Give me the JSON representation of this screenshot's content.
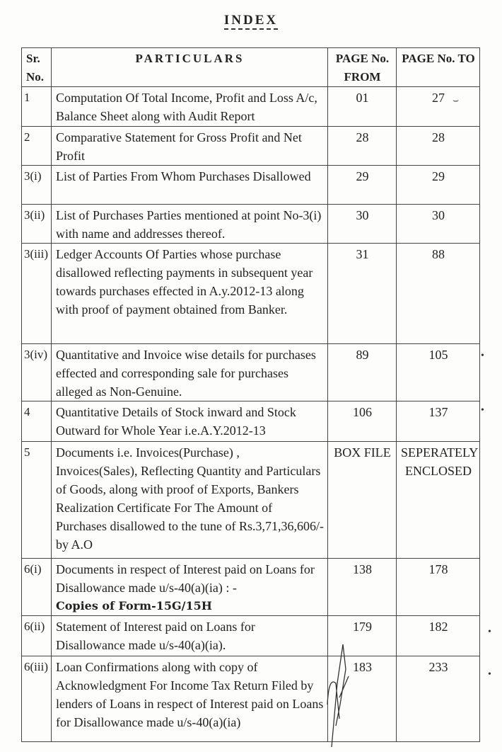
{
  "title": "INDEX",
  "headers": {
    "sr": "Sr. No.",
    "particulars": "PARTICULARS",
    "from": "PAGE No. FROM",
    "to": "PAGE No. TO"
  },
  "rows": [
    {
      "sr": "1",
      "text": "Computation Of Total Income, Profit and Loss A/c, Balance Sheet along with Audit Report",
      "from": "01",
      "to": "27"
    },
    {
      "sr": "2",
      "text": "Comparative Statement for Gross Profit and Net Profit",
      "from": "28",
      "to": "28"
    },
    {
      "sr": "3(i)",
      "text": "List of Parties From Whom Purchases Disallowed",
      "from": "29",
      "to": "29"
    },
    {
      "sr": "3(ii)",
      "text": "List of Purchases Parties mentioned at point No-3(i) with name and addresses thereof.",
      "from": "30",
      "to": "30"
    },
    {
      "sr": "3(iii)",
      "text": "Ledger Accounts Of Parties whose purchase disallowed reflecting payments in subsequent year towards purchases effected in A.y.2012-13 along with proof of payment obtained from Banker.",
      "from": "31",
      "to": "88"
    },
    {
      "sr": "3(iv)",
      "text": "Quantitative and Invoice wise details for purchases effected and corresponding sale for purchases alleged as Non-Genuine.",
      "from": "89",
      "to": "105"
    },
    {
      "sr": "4",
      "text": "Quantitative Details of Stock inward and Stock Outward for Whole Year i.e.A.Y.2012-13",
      "from": "106",
      "to": "137"
    },
    {
      "sr": "5",
      "text": "Documents i.e. Invoices(Purchase) , Invoices(Sales), Reflecting Quantity and Particulars of Goods, along with proof of Exports, Bankers Realization Certificate For The Amount of Purchases disallowed to the tune of Rs.3,71,36,606/- by A.O",
      "from": "BOX FILE",
      "to": "SEPERATELY ENCLOSED"
    },
    {
      "sr": "6(i)",
      "text": "Documents in respect of Interest paid on Loans for Disallowance made u/s-40(a)(ia) : -",
      "bold": "Copies of Form-15G/15H",
      "from": "138",
      "to": "178"
    },
    {
      "sr": "6(ii)",
      "text": "Statement of Interest paid on Loans for Disallowance made u/s-40(a)(ia).",
      "from": "179",
      "to": "182"
    },
    {
      "sr": "6(iii)",
      "text": "Loan Confirmations along with copy of Acknowledgment For Income Tax Return Filed by lenders of Loans in respect of Interest paid on Loans for Disallowance made u/s-40(a)(ia)",
      "from": "183",
      "to": "233"
    }
  ]
}
